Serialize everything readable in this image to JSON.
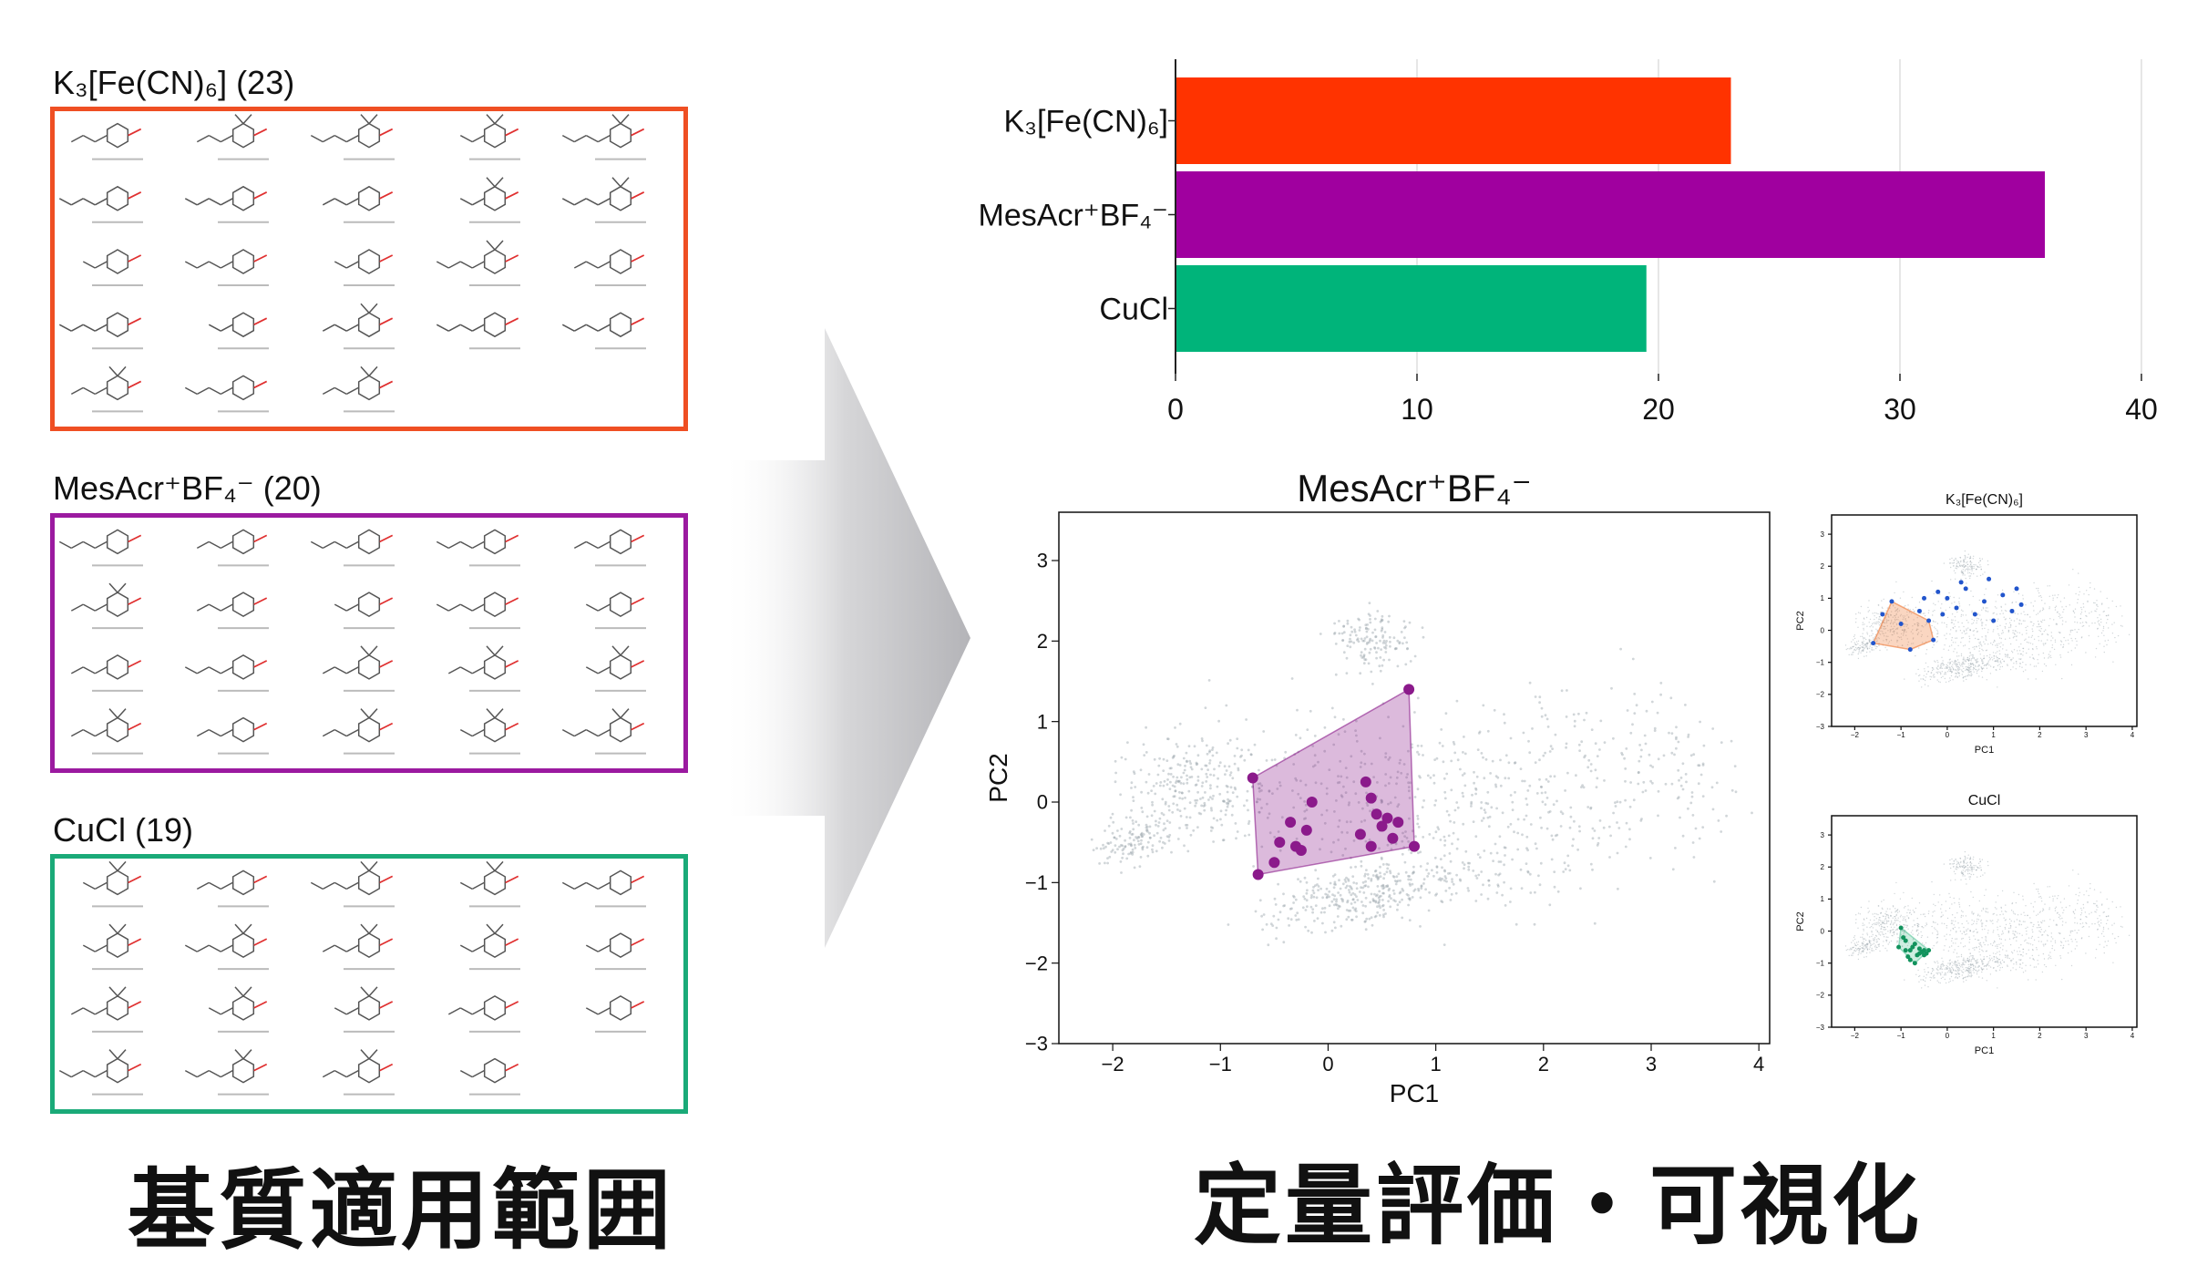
{
  "sets": [
    {
      "key": "fe",
      "title": "K₃[Fe(CN)₆] (23)",
      "color": "#ef4f23",
      "count": 23
    },
    {
      "key": "mes",
      "title": "MesAcr⁺BF₄⁻ (20)",
      "color": "#9b1aa0",
      "count": 20
    },
    {
      "key": "cu",
      "title": "CuCl (19)",
      "color": "#1aaa78",
      "count": 19
    }
  ],
  "captions": {
    "left": "基質適用範囲",
    "right": "定量評価・可視化"
  },
  "chart_data": [
    {
      "type": "bar",
      "orientation": "horizontal",
      "categories": [
        "K₃[Fe(CN)₆]",
        "MesAcr⁺BF₄⁻",
        "CuCl"
      ],
      "values": [
        23,
        36,
        19.5
      ],
      "colors": [
        "#ff3300",
        "#a0009f",
        "#00b47a"
      ],
      "xlim": [
        0,
        40
      ],
      "xticks": [
        "0",
        "10",
        "20",
        "30",
        "40"
      ],
      "grid": "vertical"
    },
    {
      "type": "scatter",
      "title": "MesAcr⁺BF₄⁻",
      "xlabel": "PC1",
      "ylabel": "PC2",
      "xlim": [
        -2.5,
        4.1
      ],
      "ylim": [
        -3.0,
        3.6
      ],
      "xticks": [
        "−2",
        "−1",
        "0",
        "1",
        "2",
        "3",
        "4"
      ],
      "yticks": [
        "−3",
        "−2",
        "−1",
        "0",
        "1",
        "2",
        "3"
      ],
      "hull": [
        [
          -0.7,
          0.3
        ],
        [
          0.75,
          1.4
        ],
        [
          0.8,
          -0.55
        ],
        [
          -0.65,
          -0.9
        ]
      ],
      "points": [
        [
          -0.7,
          0.3
        ],
        [
          -0.65,
          -0.9
        ],
        [
          -0.5,
          -0.75
        ],
        [
          -0.45,
          -0.5
        ],
        [
          -0.35,
          -0.25
        ],
        [
          -0.3,
          -0.55
        ],
        [
          -0.25,
          -0.6
        ],
        [
          -0.2,
          -0.35
        ],
        [
          -0.15,
          0.0
        ],
        [
          0.35,
          0.25
        ],
        [
          0.4,
          0.05
        ],
        [
          0.45,
          -0.15
        ],
        [
          0.5,
          -0.3
        ],
        [
          0.55,
          -0.2
        ],
        [
          0.6,
          -0.45
        ],
        [
          0.65,
          -0.25
        ],
        [
          0.4,
          -0.55
        ],
        [
          0.75,
          1.4
        ],
        [
          0.8,
          -0.55
        ],
        [
          0.3,
          -0.4
        ]
      ],
      "color": "#8b1a8b"
    },
    {
      "type": "scatter",
      "title": "K₃[Fe(CN)₆]",
      "xlabel": "PC1",
      "ylabel": "PC2",
      "xlim": [
        -2.5,
        4.1
      ],
      "ylim": [
        -3.0,
        3.6
      ],
      "xticks": [
        "−2",
        "−1",
        "0",
        "1",
        "2",
        "3",
        "4"
      ],
      "yticks": [
        "−3",
        "−2",
        "−1",
        "0",
        "1",
        "2",
        "3"
      ],
      "hull": [
        [
          -1.6,
          -0.4
        ],
        [
          -1.2,
          0.9
        ],
        [
          -0.4,
          0.3
        ],
        [
          -0.3,
          -0.3
        ],
        [
          -0.8,
          -0.6
        ]
      ],
      "points": [
        [
          -1.6,
          -0.4
        ],
        [
          -1.4,
          0.5
        ],
        [
          -1.2,
          0.9
        ],
        [
          -1.0,
          0.2
        ],
        [
          -0.8,
          -0.6
        ],
        [
          -0.6,
          0.6
        ],
        [
          -0.4,
          0.3
        ],
        [
          -0.3,
          -0.3
        ],
        [
          -0.2,
          1.2
        ],
        [
          0.0,
          1.0
        ],
        [
          0.2,
          0.7
        ],
        [
          0.4,
          1.3
        ],
        [
          0.6,
          0.5
        ],
        [
          0.8,
          0.9
        ],
        [
          1.0,
          0.3
        ],
        [
          1.2,
          1.1
        ],
        [
          1.4,
          0.6
        ],
        [
          1.5,
          1.3
        ],
        [
          -0.1,
          0.5
        ],
        [
          0.3,
          1.5
        ],
        [
          0.9,
          1.6
        ],
        [
          1.6,
          0.8
        ],
        [
          -0.5,
          1.0
        ]
      ],
      "color": "#2255cc",
      "hullColor": "#ee7733"
    },
    {
      "type": "scatter",
      "title": "CuCl",
      "xlabel": "PC1",
      "ylabel": "PC2",
      "xlim": [
        -2.5,
        4.1
      ],
      "ylim": [
        -3.0,
        3.6
      ],
      "xticks": [
        "−2",
        "−1",
        "0",
        "1",
        "2",
        "3",
        "4"
      ],
      "yticks": [
        "−3",
        "−2",
        "−1",
        "0",
        "1",
        "2",
        "3"
      ],
      "hull": [
        [
          -1.0,
          0.1
        ],
        [
          -0.4,
          -0.6
        ],
        [
          -0.7,
          -1.0
        ],
        [
          -1.05,
          -0.5
        ]
      ],
      "points": [
        [
          -1.0,
          0.1
        ],
        [
          -1.05,
          -0.5
        ],
        [
          -0.9,
          -0.3
        ],
        [
          -0.8,
          -0.6
        ],
        [
          -0.7,
          -1.0
        ],
        [
          -0.6,
          -0.7
        ],
        [
          -0.5,
          -0.6
        ],
        [
          -0.4,
          -0.6
        ],
        [
          -0.45,
          -0.7
        ],
        [
          -0.55,
          -0.65
        ],
        [
          -0.65,
          -0.75
        ],
        [
          -0.75,
          -0.5
        ],
        [
          -0.85,
          -0.8
        ],
        [
          -0.95,
          -0.2
        ],
        [
          -0.6,
          -0.55
        ],
        [
          -0.5,
          -0.75
        ],
        [
          -0.7,
          -0.4
        ],
        [
          -0.8,
          -0.9
        ],
        [
          -0.9,
          -0.6
        ]
      ],
      "color": "#12935d",
      "hullColor": "#5cc79c"
    }
  ]
}
